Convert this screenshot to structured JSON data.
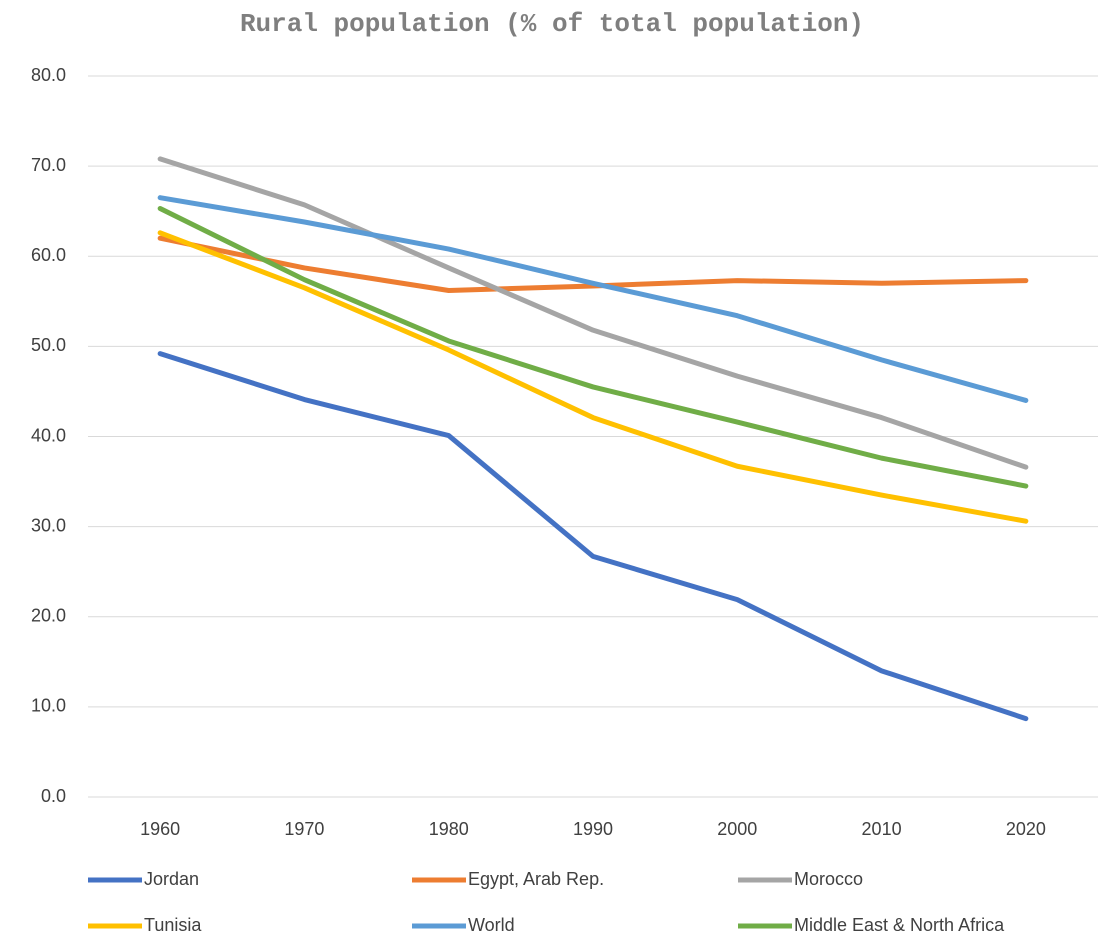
{
  "chart_data": {
    "type": "line",
    "title": "Rural population (% of total population)",
    "categories": [
      "1960",
      "1970",
      "1980",
      "1990",
      "2000",
      "2010",
      "2020"
    ],
    "series": [
      {
        "name": "Jordan",
        "color": "#4472c4",
        "values": [
          49.2,
          44.1,
          40.1,
          26.7,
          21.9,
          14.0,
          8.7
        ]
      },
      {
        "name": "Egypt, Arab Rep.",
        "color": "#ed7d31",
        "values": [
          62.0,
          58.7,
          56.2,
          56.7,
          57.3,
          57.0,
          57.3
        ]
      },
      {
        "name": "Morocco",
        "color": "#a5a5a5",
        "values": [
          70.8,
          65.7,
          58.7,
          51.8,
          46.7,
          42.1,
          36.6
        ]
      },
      {
        "name": "Tunisia",
        "color": "#ffc000",
        "values": [
          62.6,
          56.5,
          49.6,
          42.1,
          36.7,
          33.5,
          30.6
        ]
      },
      {
        "name": "World",
        "color": "#5b9bd5",
        "values": [
          66.5,
          63.8,
          60.8,
          57.0,
          53.4,
          48.5,
          44.0
        ]
      },
      {
        "name": "Middle East & North Africa",
        "color": "#70ad47",
        "values": [
          65.3,
          57.4,
          50.6,
          45.5,
          41.6,
          37.6,
          34.5
        ]
      }
    ],
    "ylim": [
      0,
      80
    ],
    "yticks": [
      {
        "value": 0,
        "label": "0.0"
      },
      {
        "value": 10,
        "label": "10.0"
      },
      {
        "value": 20,
        "label": "20.0"
      },
      {
        "value": 30,
        "label": "30.0"
      },
      {
        "value": 40,
        "label": "40.0"
      },
      {
        "value": 50,
        "label": "50.0"
      },
      {
        "value": 60,
        "label": "60.0"
      },
      {
        "value": 70,
        "label": "70.0"
      },
      {
        "value": 80,
        "label": "80.0"
      }
    ],
    "grid": true,
    "legend": "bottom"
  }
}
